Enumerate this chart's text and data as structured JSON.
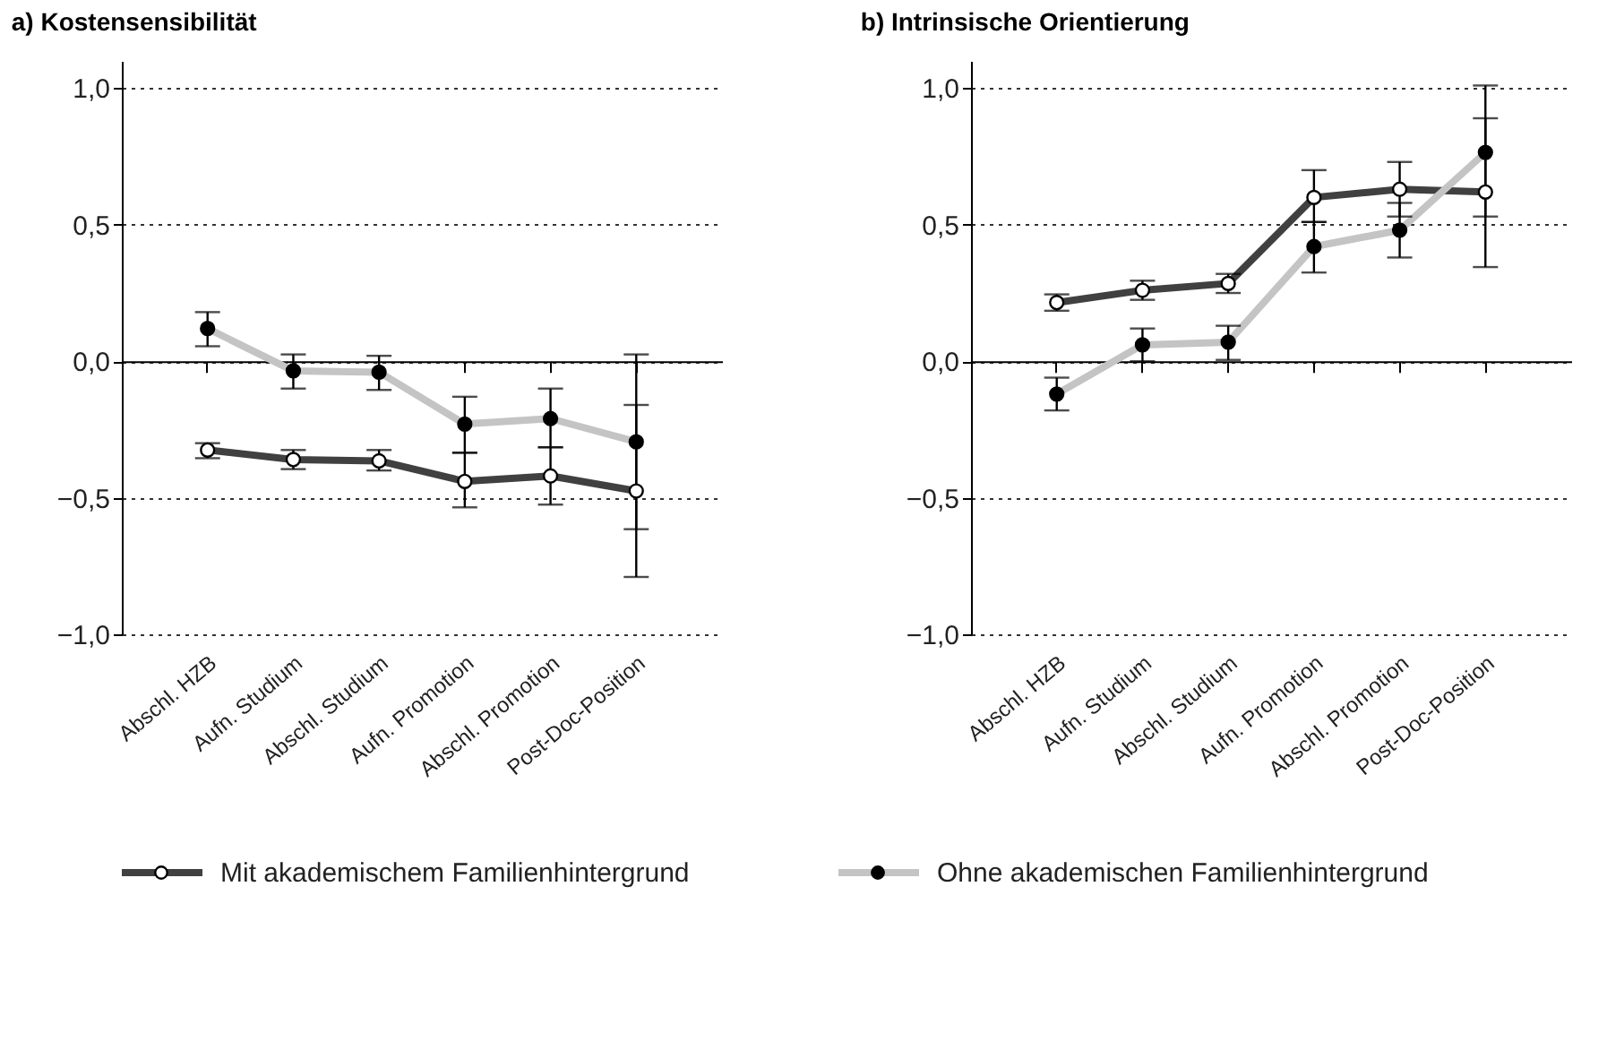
{
  "chart_data": [
    {
      "type": "line",
      "title": "a) Kostensensibilität",
      "categories": [
        "Abschl. HZB",
        "Aufn. Studium",
        "Abschl. Studium",
        "Aufn. Promotion",
        "Abschl. Promotion",
        "Post-Doc-Position"
      ],
      "series": [
        {
          "name": "Mit akademischem Familienhintergrund",
          "color": "#404040",
          "values": [
            -0.325,
            -0.36,
            -0.365,
            -0.44,
            -0.42,
            -0.475
          ],
          "errors": [
            [
              -0.355,
              -0.3
            ],
            [
              -0.395,
              -0.325
            ],
            [
              -0.4,
              -0.325
            ],
            [
              -0.535,
              -0.335
            ],
            [
              -0.525,
              -0.315
            ],
            [
              -0.79,
              -0.16
            ]
          ]
        },
        {
          "name": "Ohne akademischen Familienhintergrund",
          "color": "#c4c4c4",
          "values": [
            0.12,
            -0.035,
            -0.04,
            -0.23,
            -0.21,
            -0.295
          ],
          "errors": [
            [
              0.055,
              0.18
            ],
            [
              -0.1,
              0.025
            ],
            [
              -0.105,
              0.02
            ],
            [
              -0.335,
              -0.13
            ],
            [
              -0.315,
              -0.1
            ],
            [
              -0.615,
              0.025
            ]
          ]
        }
      ],
      "ylim": [
        -1,
        1.1
      ],
      "yticks": [
        {
          "value": -1,
          "label": "−1,0"
        },
        {
          "value": -0.5,
          "label": "−0,5"
        },
        {
          "value": 0,
          "label": "0,0"
        },
        {
          "value": 0.5,
          "label": "0,5"
        },
        {
          "value": 1,
          "label": "1,0"
        }
      ],
      "grid": "y",
      "marker": "circle",
      "legend": "bottom"
    },
    {
      "type": "line",
      "title": "b) Intrinsische Orientierung",
      "categories": [
        "Abschl. HZB",
        "Aufn. Studium",
        "Abschl. Studium",
        "Aufn. Promotion",
        "Abschl. Promotion",
        "Post-Doc-Position"
      ],
      "series": [
        {
          "name": "Mit akademischem Familienhintergrund",
          "color": "#404040",
          "values": [
            0.215,
            0.26,
            0.285,
            0.6,
            0.63,
            0.62
          ],
          "errors": [
            [
              0.185,
              0.245
            ],
            [
              0.225,
              0.295
            ],
            [
              0.25,
              0.32
            ],
            [
              0.51,
              0.7
            ],
            [
              0.53,
              0.73
            ],
            [
              0.345,
              0.89
            ]
          ]
        },
        {
          "name": "Ohne akademischen Familienhintergrund",
          "color": "#c4c4c4",
          "values": [
            -0.12,
            0.06,
            0.07,
            0.42,
            0.48,
            0.765
          ],
          "errors": [
            [
              -0.18,
              -0.06
            ],
            [
              0.0,
              0.12
            ],
            [
              0.005,
              0.13
            ],
            [
              0.325,
              0.51
            ],
            [
              0.38,
              0.58
            ],
            [
              0.53,
              1.01
            ]
          ]
        }
      ],
      "ylim": [
        -1,
        1.1
      ],
      "yticks": [
        {
          "value": -1,
          "label": "−1,0"
        },
        {
          "value": -0.5,
          "label": "−0,5"
        },
        {
          "value": 0,
          "label": "0,0"
        },
        {
          "value": 0.5,
          "label": "0,5"
        },
        {
          "value": 1,
          "label": "1,0"
        }
      ],
      "grid": "y",
      "marker": "circle"
    }
  ]
}
